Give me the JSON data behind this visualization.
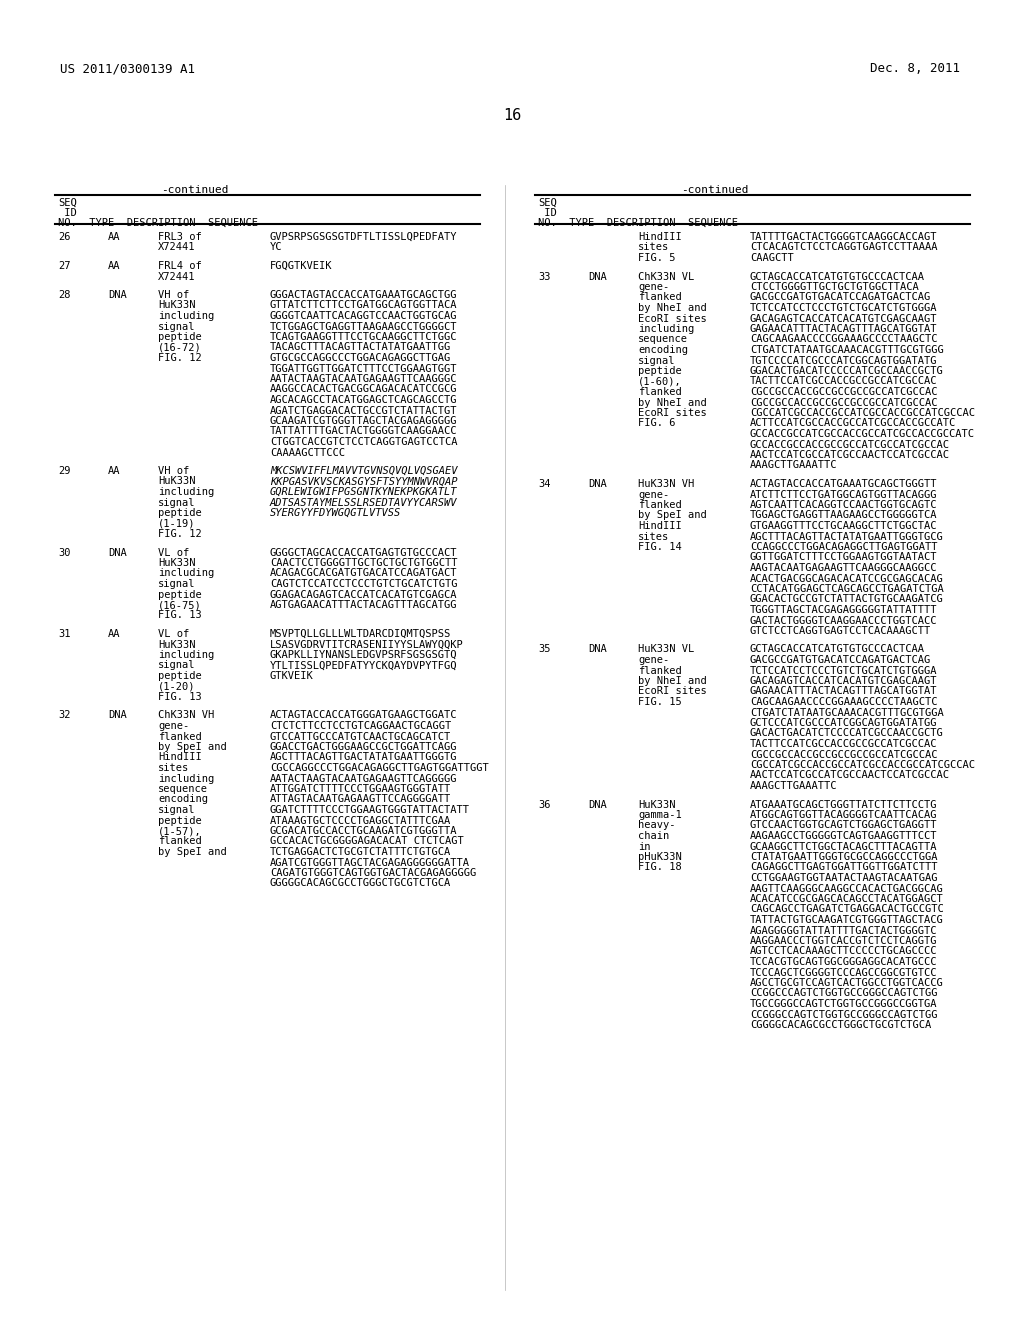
{
  "header_left": "US 2011/0300139 A1",
  "header_right": "Dec. 8, 2011",
  "page_number": "16",
  "continued_label": "-continued",
  "col_headers": "SEQ\n ID\nNO.  TYPE  DESCRIPTION  SEQUENCE",
  "bg_color": "#ffffff",
  "text_color": "#000000",
  "font_size": 7.5,
  "header_font_size": 9,
  "left_column": [
    {
      "seq_no": "26",
      "type": "AA",
      "description": "FRL3 of\nX72441",
      "sequence": "GVPSRPSGSGSGTDFTLTISSLQPEDFATY\nYC"
    },
    {
      "seq_no": "27",
      "type": "AA",
      "description": "FRL4 of\nX72441",
      "sequence": "FGQGTKVEIK"
    },
    {
      "seq_no": "28",
      "type": "DNA",
      "description": "VH of\nHuK33N\nincluding\nsignal\npeptide\n(16-72)\nFIG. 12",
      "sequence": "GGGACTAGTACCACCATGAAATGCAGCTGG\nGTTATCTTCTTCCTGATGGCAGTGGTTACA\nGGGGTCAATTCACAGGTCCAACTGGTGCAG\nTCTGGAGCTGAGGTTAAGAAGCCTGGGGCT\nTCAGTGAAGGTTTCCTGCAAGGCTTCTGGC\nTACAGCTTTACAGTTACTATATGAATTGG\nGTGCGCCAGGCCCTGGACAGAGGCTTGAG\nTGGATTGGTTGGATCTTTCCTGGAAGTGGT\nAATACTAAGTACAATGAGAAGTTCAAGGGC\nAAGGCCACACTGACGGCAGACACATCCGCG\nAGCACAGCCTACATGGAGCTCAGCAGCCTG\nAGATCTGAGGACACTGCCGTCTATTACTGT\nGCAAGATCGTGGGTTAGCTACGAGAGGGGG\nTATTATTTTGACTACTGGGGTCAAGGAACC\nCTGGTCACCGTCTCCTCAGGTGAGTCCTCA\nCAAAAGCTTCCC"
    },
    {
      "seq_no": "29",
      "type": "AA",
      "description": "VH of\nHuK33N\nincluding\nsignal\npeptide\n(1-19)\nFIG. 12",
      "sequence": "MKCSWVIFFLMAVVTGVNSQVQLVQSGAEV\nKKPGASVKVSCKASGYSFTSYYMNWVRQAP\nGQRLEWIGWIFPGSGNTKYNEKPKGKATLT\nADTSASTAYMELSSLRSEDTAVYYCARSWV\nSYERGYYFDYWGQGTLVTVSS"
    },
    {
      "seq_no": "30",
      "type": "DNA",
      "description": "VL of\nHuK33N\nincluding\nsignal\npeptide\n(16-75)\nFIG. 13",
      "sequence": "GGGGCTAGCACCACCATGAGTGTGCCCACT\nCAACTCCTGGGGTTGCTGCTGCTGTGGCTT\nACAGACGCACGATGTGACATCCAGATGACT\nCAGTCTCCATCCTCCCTGTCTGCATCTGTG\nGGAGACAGAGTCACCATCACATGTCGAGCA\nAGTGAGAACATTTACTACAGTTTAGCATGG"
    },
    {
      "seq_no": "31",
      "type": "AA",
      "description": "VL of\nHuK33N\nincluding\nsignal\npeptide\n(1-20)\nFIG. 13",
      "sequence": "MSVPTQLLGLLLWLTDARCDIQMTQSPSS\nLSASVGDRVTITCRASENIIYYSLAWYQQKP\nGKAPKLLIYNANSLEDGVPSRFSGSGSGTQ\nYTLTISSLQPEDFATYYCKQAYDVPYTFGQ\nGTKVEIK"
    },
    {
      "seq_no": "32",
      "type": "DNA",
      "description": "ChK33N VH\ngene-\nflanked\nby SpeI and\nHindIII\nsites\nincluding\nsequence\nencoding\nsignal\npeptide\n(1-57),\nflanked\nby SpeI and",
      "sequence": "ACTAGTACCACCATGGGATGAAGCTGGATC\nCTCTCTTCCTCCTGTCAGGAACTGCAGGT\nGTCCATTGCCCATGTCAACTGCAGCATCT\nGGACCTGACTGGGAAGCCGCTGGATTCAGG\nAGCTTTACAGTTGACTATATGAATTGGGTG\nCGCCAGGCCCTGGACAGAGGCTTGAGTGGATTGGT\nAATACTAAGTACAATGAGAAGTTCAGGGGG\nATTGGATCTTTTCCCTGGAAGTGGGTATT\nATTAGTACAATGAGAAGTTCCAGGGGATT\nGGATCTTTTCCCTGGAAGTGGGTATTACTATT\nATAAAGTGCTCCCCTGAGGCTATTTCGAA\nGCGACATGCCACCTGCAAGATCGTGGGTTA\nGCCACACTGCGGGGAGACACAT CTCTCAGT\nTCTGAGGACTCTGCGTCTATTTCTGTGCA\nAGATCGTGGGTTAGCTACGAGAGGGGGGATTA\nCAGATGTGGGTCAGTGGTGACTACGAGAGGGGG\nGGGGGCACAGCGCCTGGGCTGCGTCTGCA"
    }
  ],
  "right_column": [
    {
      "seq_no": "",
      "type": "",
      "description": "HindIII\nsites\nFIG. 5",
      "sequence": "TATTTTGACTACTGGGGTCAAGGCACCAGT\nCTCACAGTCTCCTCAGGTGAGTCCTTAAAA\nCAAGCTT"
    },
    {
      "seq_no": "33",
      "type": "DNA",
      "description": "ChK33N VL\ngene-\nflanked\nby NheI and\nEcoRI sites\nincluding\nsequence\nencoding\nsignal\npeptide\n(1-60),\nflanked\nby NheI and\nEcoRI sites\nFIG. 6",
      "sequence": "GCTAGCACCATCATGTGTGCCCACTCAA\nCTCCTGGGGTTGCTGCTGTGGCTTACA\nGACGCCGATGTGACATCCAGATGACTCAG\nTCTCCATCCTCCCTGTCTGCATCTGTGGGA\nGACAGAGTCACCATCACATGTCGAGCAAGT\nGAGAACATTTACTACAGTTTAGCATGGTAT\nCAGCAAGAACCCCGGAAAGCCCCTAAGCTC\nCTGATCTATAATGCAAACACGTTTGCGTGGG\nTGTCCCCATCGCCCATCGGCAGTGGATATG\nGGACACTGACATCCCCCATCGCCAACCGCTG\nTACTTCCATCGCCACCGCCGCCATCGCCAC\nCGCCGCCACCGCCGCCGCCGCCATCGCCAC\nCGCCGCCACCGCCGCCGCCGCCATCGCCAC\nCGCCATCGCCACCGCCATCGCCACCGCCATCGCCAC\nACTTCCATCGCCACCGCCATCGCCACCGCCATC\nGCCACCGCCATCGCCACCGCCATCGCCACCGCCATC\nGCCACCGCCACCGCCGCCATCGCCATCGCCAC\nAACTCCATCGCCATCGCCAACTCCATCGCCAC\nAAAGCTTGAAATTC"
    },
    {
      "seq_no": "34",
      "type": "DNA",
      "description": "HuK33N VH\ngene-\nflanked\nby SpeI and\nHindIII\nsites\nFIG. 14",
      "sequence": "ACTAGTACCACCATGAAATGCAGCTGGGTT\nATCTTCTTCCTGATGGCAGTGGTTACAGGG\nAGTCAATTCACAGGTCCAACTGGTGCAGTC\nTGGAGCTGAGGTTAAGAAGCCTGGGGGTCA\nGTGAAGGTTTCCTGCAAGGCTTCTGGCTAC\nAGCTTTACAGTTACTATATGAATTGGGTGCG\nCCAGGCCCTGGACAGAGGCTTGAGTGGATT\nGGTTGGATCTTTCCTGGAAGTGGTAATACT\nAAGTACAATGAGAAGTTCAAGGGCAAGGCC\nACACTGACGGCAGACACATCCGCGAGCACAG\nCCTACATGGAGCTCAGCAGCCTGAGATCTGA\nGGACACTGCCGTCTATTACTGTGCAAGATCG\nTGGGTTAGCTACGAGAGGGGGTATTATTTT\nGACTACTGGGGTCAAGGAACCCTGGTCACC\nGTCTCCTCAGGTGAGTCCTCACAAAGCTT"
    },
    {
      "seq_no": "35",
      "type": "DNA",
      "description": "HuK33N VL\ngene-\nflanked\nby NheI and\nEcoRI sites\nFIG. 15",
      "sequence": "GCTAGCACCATCATGTGTGCCCACTCAA\nGACGCCGATGTGACATCCAGATGACTCAG\nTCTCCATCCTCCCTGTCTGCATCTGTGGGA\nGACAGAGTCACCATCACATGTCGAGCAAGT\nGAGAACATTTACTACAGTTTAGCATGGTAT\nCAGCAAGAACCCCGGAAAGCCCCTAAGCTC\nCTGATCTATAATGCAAACACGTTTGCGTGGA\nGCTCCCATCGCCCATCGGCAGTGGATATGG\nGACACTGACATCTCCCCATCGCCAACCGCTG\nTACTTCCATCGCCACCGCCGCCATCGCCAC\nCGCCGCCACCGCCGCCGCCGCCATCGCCAC\nCGCCATCGCCACCGCCATCGCCACCGCCATCGCCAC\nAACTCCATCGCCATCGCCAACTCCATCGCCAC\nAAAGCTTGAAATTC"
    },
    {
      "seq_no": "36",
      "type": "DNA",
      "description": "HuK33N\ngamma-1\nheavy-\nchain\nin\npHuK33N\nFIG. 18",
      "sequence": "ATGAAATGCAGCTGGGTTATCTTCTTCCTG\nATGGCAGTGGTTACAGGGGTCAATTCACAG\nGTCCAACTGGTGCAGTCTGGAGCTGAGGTT\nAAGAAGCCTGGGGGTCAGTGAAGGTTTCCT\nGCAAGGCTTCTGGCTACAGCTTTACAGTTA\nCTATATGAATTGGGTGCGCCAGGCCCTGGA\nCAGAGGCTTGAGTGGATTGGTTGGATCTTT\nCCTGGAAGTGGTAATACTAAGTACAATGAG\nAAGTTCAAGGGCAAGGCCACACTGACGGCAG\nACACATCCGCGAGCACAGCCTACATGGAGCT\nCAGCAGCCTGAGATCTGAGGACACTGCCGTC\nTATTACTGTGCAAGATCGTGGGTTAGCTACG\nAGAGGGGGTATTATTTTGACTACTGGGGTC\nAAGGAACCCTGGTCACCGTCTCCTCAGGTG\nAGTCCTCACAAAGCTTCCCCCTGCAGCCCC\nTCCACGTGCAGTGGCGGGAGGCACATGCCC\nTCCCAGCTCGGGGTCCCAGCCGGCGTGTCC\nAGCCTGCGTCCAGTCACTGGCCTGGTCACCG\nCCGGCCCAGTCTGGTGCCGGGCCAGTCTGG\nTGCCGGGCCAGTCTGGTGCCGGGCCGGTGA\nCCGGGCCAGTCTGGTGCCGGGCCAGTCTGG\nCGGGGCACAGCGCCTGGGCTGCGTCTGCA"
    }
  ]
}
